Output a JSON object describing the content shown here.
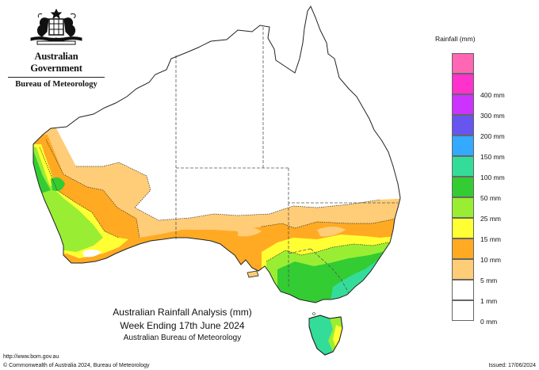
{
  "branding": {
    "crest_icon": "coat-of-arms-icon",
    "government": "Australian Government",
    "bureau": "Bureau of Meteorology"
  },
  "map": {
    "title_line_1": "Australian Rainfall Analysis (mm)",
    "title_line_2": "Week Ending 17th June 2024",
    "subtitle": "Australian Bureau of Meteorology"
  },
  "legend": {
    "title": "Rainfall (mm)",
    "items": [
      {
        "label": "",
        "color": "#ff66b3"
      },
      {
        "label": "400 mm",
        "color": "#ff33cc"
      },
      {
        "label": "300 mm",
        "color": "#cc33ff"
      },
      {
        "label": "200 mm",
        "color": "#6655ee"
      },
      {
        "label": "150 mm",
        "color": "#33a9ff"
      },
      {
        "label": "100 mm",
        "color": "#33dd99"
      },
      {
        "label": "50 mm",
        "color": "#33cc33"
      },
      {
        "label": "25 mm",
        "color": "#99ee33"
      },
      {
        "label": "15 mm",
        "color": "#ffff33"
      },
      {
        "label": "10 mm",
        "color": "#ffaa22"
      },
      {
        "label": "5 mm",
        "color": "#ffcc77"
      },
      {
        "label": "1 mm",
        "color": "#ffffff"
      },
      {
        "label": "0 mm",
        "color": ""
      }
    ]
  },
  "footer": {
    "url": "http://www.bom.gov.au",
    "copyright": "© Commonwealth of Australia 2024, Bureau of Meteorology",
    "issued": "Issued: 17/06/2024"
  },
  "colors": {
    "outline": "#222222",
    "state_border": "#555555",
    "contour": "#333333"
  }
}
